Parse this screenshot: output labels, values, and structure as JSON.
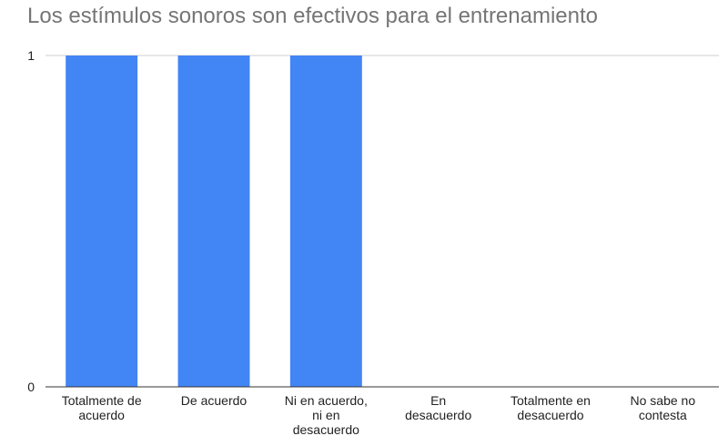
{
  "chart_data": {
    "type": "bar",
    "title": "Los estímulos sonoros son efectivos para el entrenamiento",
    "categories": [
      [
        "Totalmente de",
        "acuerdo"
      ],
      [
        "De acuerdo"
      ],
      [
        "Ni en acuerdo,",
        "ni en",
        "desacuerdo"
      ],
      [
        "En",
        "desacuerdo"
      ],
      [
        "Totalmente en",
        "desacuerdo"
      ],
      [
        "No sabe no",
        "contesta"
      ]
    ],
    "values": [
      1,
      1,
      1,
      0,
      0,
      0
    ],
    "ylim": [
      0,
      1
    ],
    "yticks": [
      "0",
      "1"
    ],
    "grid": true,
    "legend": "none",
    "colors": {
      "bar": "#4285f4",
      "title": "#757575",
      "gridline": "#cccccc",
      "axis": "#333333",
      "label": "#222222"
    }
  }
}
